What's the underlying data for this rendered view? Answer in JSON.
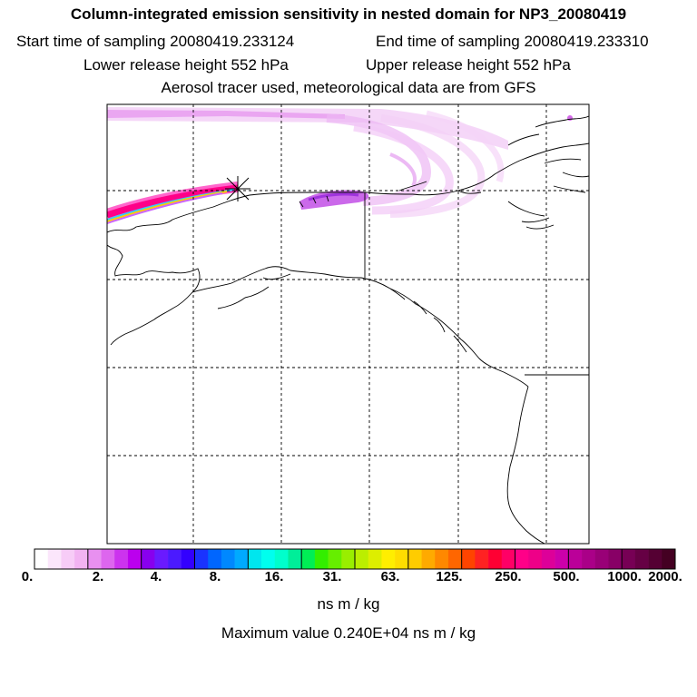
{
  "header": {
    "title": "Column-integrated emission sensitivity in nested domain for NP3_20080419",
    "start_label": "Start time of sampling 20080419.233124",
    "end_label": "End time of sampling 20080419.233310",
    "lower_label": "Lower release height  552 hPa",
    "upper_label": "Upper release height  552 hPa",
    "tracer_label": "Aerosol tracer used, meteorological data are from GFS"
  },
  "colorbar": {
    "ticks": [
      "0.",
      "2.",
      "4.",
      "8.",
      "16.",
      "31.",
      "63.",
      "125.",
      "250.",
      "500.",
      "1000.",
      "2000."
    ],
    "colors": [
      "#ffffff",
      "#fbe6fb",
      "#f7ccf7",
      "#f2b3f2",
      "#e890f0",
      "#dd66ee",
      "#cc33ee",
      "#bb00ee",
      "#8800ee",
      "#6a1aff",
      "#4b1aff",
      "#3300ff",
      "#1a33ff",
      "#0066ff",
      "#0088ff",
      "#00aaff",
      "#00e6ee",
      "#00ffee",
      "#00ffcc",
      "#00ee99",
      "#00ee55",
      "#33ee00",
      "#66ee00",
      "#99ee00",
      "#bbee00",
      "#ddee00",
      "#ffee00",
      "#ffdd00",
      "#ffcc00",
      "#ffaa00",
      "#ff8800",
      "#ff6600",
      "#ff4400",
      "#ff2222",
      "#ff0033",
      "#ff0066",
      "#ff0088",
      "#ee0088",
      "#dd0099",
      "#cc00aa",
      "#bb0099",
      "#aa0088",
      "#990077",
      "#880066",
      "#770055",
      "#660044",
      "#550033",
      "#440022"
    ],
    "unit": "ns m / kg",
    "max_value_label": "Maximum value  0.240E+04 ns m / kg"
  }
}
